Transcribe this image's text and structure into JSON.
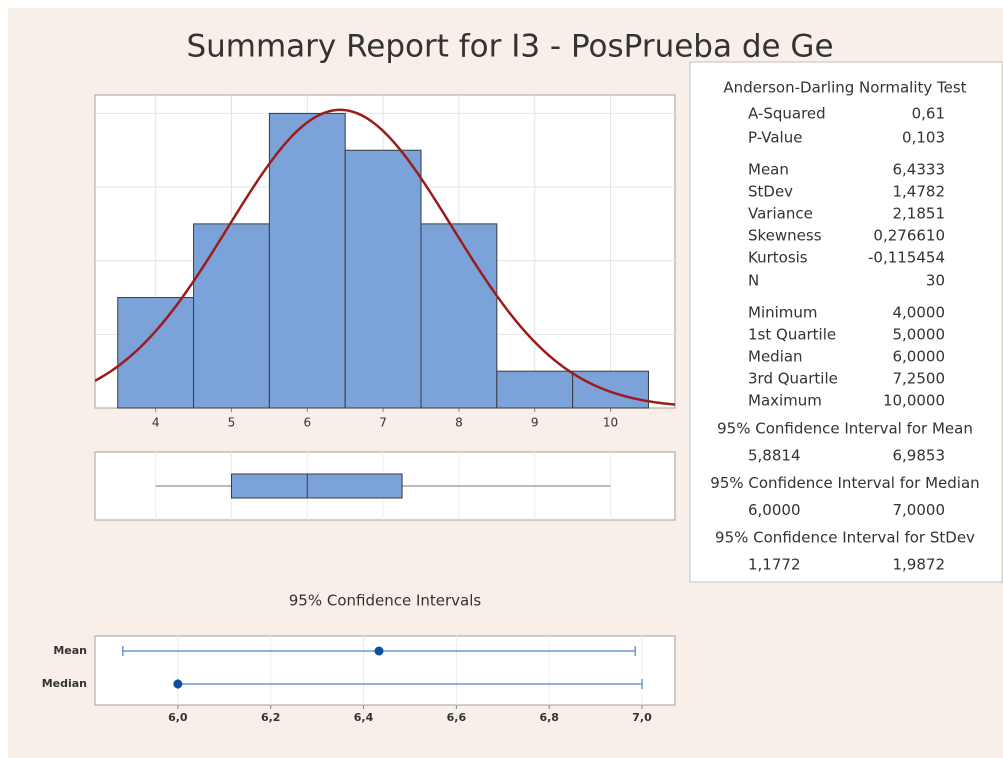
{
  "title": "Summary Report for I3 - PosPrueba de Ge",
  "chart_data": [
    {
      "type": "histogram",
      "bins": [
        3.5,
        4.5,
        5.5,
        6.5,
        7.5,
        8.5,
        9.5,
        10.5
      ],
      "counts": [
        3,
        5,
        8,
        7,
        5,
        1,
        1
      ],
      "color": "#7ba3d9",
      "xlim": [
        3.2,
        10.85
      ],
      "xticks": [
        4,
        5,
        6,
        7,
        8,
        9,
        10
      ],
      "ylim": [
        0,
        8.5
      ],
      "yticks": [
        2,
        4,
        6,
        8
      ],
      "grid": true,
      "fit": {
        "mean": 6.4333,
        "stdev": 1.4782,
        "n": 30,
        "color": "#9b1c1c"
      }
    },
    {
      "type": "boxplot",
      "values": {
        "min": 4,
        "q1": 5,
        "median": 6,
        "q3": 7.25,
        "max": 10
      },
      "color": "#7ba3d9",
      "xlim": [
        3.2,
        10.85
      ],
      "xticks": [
        4,
        5,
        6,
        7,
        8,
        9,
        10
      ],
      "grid": true
    },
    {
      "type": "interval",
      "title": "95% Confidence Intervals",
      "series": [
        {
          "name": "Mean",
          "value": 6.4333,
          "lower": 5.8814,
          "upper": 6.9853
        },
        {
          "name": "Median",
          "value": 6.0,
          "lower": 6.0,
          "upper": 7.0
        }
      ],
      "color": "#0b4ea2",
      "line_color": "#6a9bd3",
      "xlim": [
        5.8215,
        7.071
      ],
      "xticks": [
        {
          "value": 6.0,
          "label": "6,0"
        },
        {
          "value": 6.2,
          "label": "6,2"
        },
        {
          "value": 6.4,
          "label": "6,4"
        },
        {
          "value": 6.6,
          "label": "6,6"
        },
        {
          "value": 6.8,
          "label": "6,8"
        },
        {
          "value": 7.0,
          "label": "7,0"
        }
      ],
      "grid": true
    }
  ],
  "summary": {
    "heading": "Anderson-Darling Normality Test",
    "groups": [
      [
        {
          "name": "A-Squared",
          "value": 0.61,
          "label": "0,61"
        },
        {
          "name": "P-Value",
          "value": 0.103,
          "label": "0,103"
        }
      ],
      [
        {
          "name": "Mean",
          "value": 6.4333,
          "label": "6,4333"
        },
        {
          "name": "StDev",
          "value": 1.4782,
          "label": "1,4782"
        },
        {
          "name": "Variance",
          "value": 2.1851,
          "label": "2,1851"
        },
        {
          "name": "Skewness",
          "value": 0.27661,
          "label": "0,276610"
        },
        {
          "name": "Kurtosis",
          "value": -0.115454,
          "label": "-0,115454"
        },
        {
          "name": "N",
          "value": 30
        }
      ],
      [
        {
          "name": "Minimum",
          "value": 4,
          "label": "4,0000"
        },
        {
          "name": "1st Quartile",
          "value": 5,
          "label": "5,0000"
        },
        {
          "name": "Median",
          "value": 6,
          "label": "6,0000"
        },
        {
          "name": "3rd Quartile",
          "value": 7.25,
          "label": "7,2500"
        },
        {
          "name": "Maximum",
          "value": 10,
          "label": "10,0000"
        }
      ]
    ],
    "intervals": [
      {
        "title": "95% Confidence Interval for Mean",
        "lower": 5.8814,
        "upper": 6.9853,
        "lower_label": "5,8814",
        "upper_label": "6,9853"
      },
      {
        "title": "95% Confidence Interval for Median",
        "lower": 6.0,
        "upper": 7.0,
        "lower_label": "6,0000",
        "upper_label": "7,0000"
      },
      {
        "title": "95% Confidence Interval for StDev",
        "lower": 1.1772,
        "upper": 1.9872,
        "lower_label": "1,1772",
        "upper_label": "1,9872"
      }
    ]
  }
}
